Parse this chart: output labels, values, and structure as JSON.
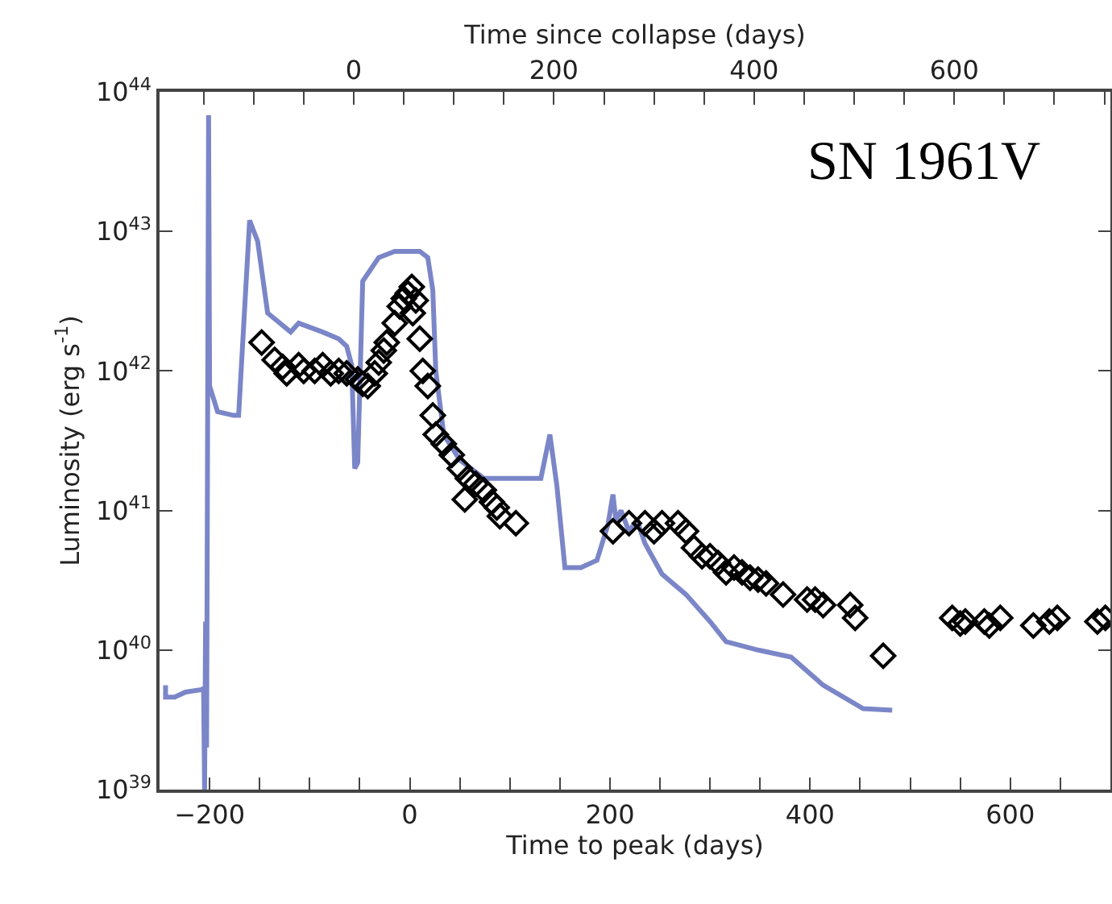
{
  "chart_data": {
    "type": "line",
    "xlabel": "Time to peak (days)",
    "ylabel": "Luminosity (erg s$^{-1}$)",
    "x2label": "Time since collapse (days)",
    "annotations": [
      "SN 1961V"
    ],
    "log": "y",
    "xlim": [
      -250,
      700
    ],
    "xticks": [
      {
        "value": -250,
        "label": null
      },
      -200,
      {
        "value": -150,
        "label": null
      },
      {
        "value": -100,
        "label": null
      },
      {
        "value": -50,
        "label": null
      },
      0,
      {
        "value": 50,
        "label": null
      },
      {
        "value": 100,
        "label": null
      },
      {
        "value": 150,
        "label": null
      },
      200,
      {
        "value": 250,
        "label": null
      },
      {
        "value": 300,
        "label": null
      },
      {
        "value": 350,
        "label": null
      },
      400,
      {
        "value": 450,
        "label": null
      },
      {
        "value": 500,
        "label": null
      },
      {
        "value": 550,
        "label": null
      },
      600,
      {
        "value": 650,
        "label": null
      }
    ],
    "x2lim": [
      -194,
      756
    ],
    "x2ticks": [
      {
        "value": -150,
        "label": null
      },
      {
        "value": -100,
        "label": null
      },
      {
        "value": -50,
        "label": null
      },
      0,
      {
        "value": 50,
        "label": null
      },
      {
        "value": 100,
        "label": null
      },
      {
        "value": 150,
        "label": null
      },
      200,
      {
        "value": 250,
        "label": null
      },
      {
        "value": 300,
        "label": null
      },
      {
        "value": 350,
        "label": null
      },
      400,
      {
        "value": 450,
        "label": null
      },
      {
        "value": 500,
        "label": null
      },
      {
        "value": 550,
        "label": null
      },
      600,
      {
        "value": 650,
        "label": null
      },
      {
        "value": 700,
        "label": null
      },
      {
        "value": 750,
        "label": null
      }
    ],
    "ylim": [
      1e+39,
      1e+44
    ],
    "yticks": [
      {
        "value": 1e+39,
        "label": "10$^{39}$"
      },
      {
        "value": 1e+40,
        "label": "10$^{40}$"
      },
      {
        "value": 1e+41,
        "label": "10$^{41}$"
      },
      {
        "value": 1e+42,
        "label": "10$^{42}$"
      },
      {
        "value": 1e+43,
        "label": "10$^{43}$"
      },
      {
        "value": 1e+44,
        "label": "10$^{44}$"
      }
    ],
    "series": [
      {
        "color": "#7b86c8",
        "line_style": "solid",
        "marker": "none",
        "x": [
          -244,
          -244,
          -235,
          -224,
          -208,
          -206,
          -205,
          -204,
          -203,
          -201,
          -200,
          -192,
          -176,
          -171,
          -160,
          -152,
          -142,
          -119,
          -111,
          -87,
          -71,
          -63,
          -58,
          -55,
          -52,
          -47,
          -31,
          -15,
          10,
          18,
          23,
          26,
          34,
          50,
          74,
          106,
          131,
          140,
          147,
          155,
          171,
          187,
          198,
          203,
          206,
          211,
          219,
          227,
          235,
          252,
          276,
          300,
          316,
          348,
          381,
          413,
          453,
          482
        ],
        "values": [
          5.6e+39,
          4.6e+39,
          4.6e+39,
          5e+39,
          5.2e+39,
          5.3e+39,
          1e+39,
          1.6e+40,
          2e+39,
          6.8e+43,
          7.8e+41,
          5.1e+41,
          4.8e+41,
          4.8e+41,
          1.2e+43,
          8.5e+42,
          2.6e+42,
          1.9e+42,
          2.2e+42,
          1.9e+42,
          1.7e+42,
          1.5e+42,
          1.1e+42,
          2e+41,
          2.2e+41,
          4.4e+42,
          6.5e+42,
          7.2e+42,
          7.2e+42,
          6.5e+42,
          3.8e+42,
          1e+42,
          3.5e+41,
          2.3e+41,
          1.7e+41,
          1.7e+41,
          1.7e+41,
          3.5e+41,
          1.5e+41,
          3.9e+40,
          3.9e+40,
          4.4e+40,
          7.9e+40,
          1.3e+41,
          8.5e+40,
          1e+41,
          7.1e+40,
          8.5e+40,
          5.8e+40,
          3.5e+40,
          2.5e+40,
          1.6e+40,
          1.15e+40,
          1e+40,
          8.9e+39,
          5.6e+39,
          3.8e+39,
          3.7e+39
        ]
      },
      {
        "type": "scatter",
        "color": "#000000",
        "marker": "diamond",
        "x": [
          -148,
          -135,
          -127,
          -123,
          -111,
          -106,
          -95,
          -87,
          -79,
          -71,
          -63,
          -52,
          -47,
          -42,
          -35,
          -31,
          -26,
          -23,
          -15,
          -10,
          -6,
          -2,
          2,
          6,
          3,
          10,
          13,
          18,
          23,
          26,
          34,
          42,
          50,
          58,
          66,
          55,
          74,
          82,
          87,
          90,
          106,
          203,
          219,
          235,
          244,
          252,
          268,
          276,
          284,
          292,
          300,
          308,
          316,
          324,
          332,
          340,
          348,
          356,
          373,
          397,
          405,
          413,
          440,
          445,
          473,
          542,
          550,
          555,
          574,
          579,
          590,
          623,
          639,
          647,
          687,
          695
        ],
        "values": [
          1.6e+42,
          1.2e+42,
          1.07e+42,
          9.6e+41,
          1.1e+42,
          1e+42,
          1e+42,
          1.1e+42,
          9.6e+41,
          1e+42,
          9.6e+41,
          8.7e+41,
          8.1e+41,
          7.8e+41,
          9.6e+41,
          1.15e+42,
          1.4e+42,
          1.6e+42,
          2.2e+42,
          2.9e+42,
          3.3e+42,
          3.6e+42,
          4e+42,
          3.2e+42,
          2.6e+42,
          1.7e+42,
          1e+42,
          7.8e+41,
          4.8e+41,
          3.5e+41,
          3e+41,
          2.5e+41,
          2e+41,
          1.7e+41,
          1.55e+41,
          1.2e+41,
          1.4e+41,
          1.15e+41,
          1.05e+41,
          9.1e+40,
          8.1e+40,
          7.1e+40,
          8.1e+40,
          8.1e+40,
          7.1e+40,
          8.1e+40,
          8.1e+40,
          7.1e+40,
          5.4e+40,
          4.7e+40,
          4.7e+40,
          4.2e+40,
          3.6e+40,
          3.9e+40,
          3.6e+40,
          3.3e+40,
          3.2e+40,
          3e+40,
          2.5e+40,
          2.3e+40,
          2.3e+40,
          2.1e+40,
          2.1e+40,
          1.7e+40,
          9.1e+39,
          1.7e+40,
          1.55e+40,
          1.6e+40,
          1.6e+40,
          1.5e+40,
          1.7e+40,
          1.5e+40,
          1.6e+40,
          1.7e+40,
          1.6e+40,
          1.7e+40
        ]
      }
    ]
  }
}
